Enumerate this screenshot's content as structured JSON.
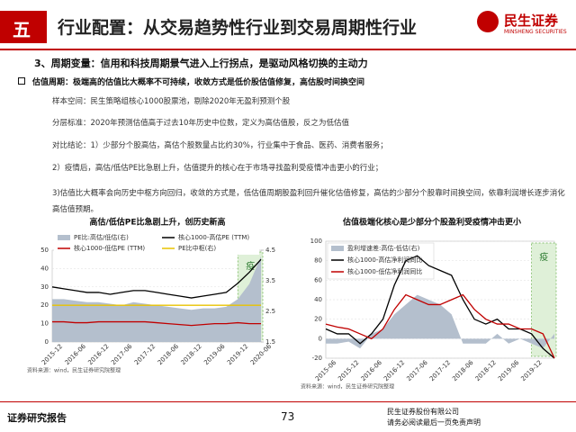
{
  "header": {
    "number": "五",
    "title": "行业配置：从交易趋势性行业到交易周期性行业",
    "logo_cn": "民生证券",
    "logo_en": "MINSHENG SECURITIES"
  },
  "subheading": "3、周期变量：信用和科技周期景气进入上行拐点，是驱动风格切换的主动力",
  "bullet": "估值周期：极端高的估值比大概率不可持续，收敛方式是低价股估值修复，高估股时间换空间",
  "paragraphs": [
    "样本空间：民生策略组核心1000股票池，剔除2020年无盈利预测个股",
    "分层标准：2020年预测估值高于过去10年历史中位数，定义为高估值股，反之为低估值",
    "对比结论：1）少部分个股高估，高估个股数量占比约30%，行业集中于食品、医药、消费者服务；",
    "2）疫情后，高估/低估PE比急剧上升，估值提升的核心在于市场寻找盈利受疫情冲击更小的行业；",
    "3)估值比大概率会向历史中枢方向回归，收敛的方式是，低估值周期股盈利回升催化估值修复，高估的少部分个股靠时间换空间，依靠利润增长逐步消化高估值预期。"
  ],
  "footer": {
    "left": "证券研究报告",
    "page": "73",
    "company": "民生证券股份有限公司",
    "disclaimer": "请务必阅读最后一页免责声明"
  },
  "chart_data": [
    {
      "type": "line",
      "title": "高估/低估PE比急剧上升，创历史新高",
      "source": "资料来源：wind，民生证券研究院整理",
      "annotation": "疫",
      "categories": [
        "2015-12",
        null,
        "2016-06",
        null,
        "2016-12",
        null,
        "2017-06",
        null,
        "2017-12",
        null,
        "2018-06",
        null,
        "2018-12",
        null,
        "2019-06",
        null,
        "2019-12",
        null,
        "2020-06"
      ],
      "ylim": [
        0,
        50
      ],
      "yticks": [
        0,
        10,
        20,
        30,
        40,
        50
      ],
      "y2lim": [
        1.5,
        4.5
      ],
      "y2ticks": [
        1.5,
        2.5,
        3.5,
        4.5
      ],
      "series": [
        {
          "name": "PE比:高估/低估(右)",
          "color": "#b4bfcd",
          "axis": "y2",
          "style": "area",
          "values": [
            2.9,
            2.9,
            2.85,
            2.8,
            2.8,
            2.75,
            2.7,
            2.8,
            2.75,
            2.7,
            2.65,
            2.6,
            2.55,
            2.6,
            2.6,
            2.65,
            2.9,
            3.4,
            4.3
          ]
        },
        {
          "name": "核心1000-高估PE (TTM)",
          "color": "#000000",
          "values": [
            30,
            29,
            28,
            27,
            27,
            26,
            27,
            28,
            28,
            27,
            26,
            25,
            24,
            25,
            26,
            27,
            32,
            38,
            45
          ]
        },
        {
          "name": "核心1000-低估PE (TTM)",
          "color": "#c00000",
          "values": [
            11,
            11,
            10.5,
            10.5,
            11,
            11,
            11,
            11,
            11,
            10.5,
            10,
            9.5,
            9,
            9.5,
            10,
            10,
            10.5,
            10,
            10
          ]
        },
        {
          "name": "PE比中枢(右)",
          "color": "#e8c200",
          "axis": "y2",
          "values": [
            2.7,
            2.7,
            2.7,
            2.7,
            2.7,
            2.7,
            2.7,
            2.7,
            2.7,
            2.7,
            2.7,
            2.7,
            2.7,
            2.7,
            2.7,
            2.7,
            2.7,
            2.7,
            2.7
          ]
        }
      ]
    },
    {
      "type": "line",
      "title": "估值极端化核心是少部分个股盈利受疫情冲击更小",
      "source": "资料来源：wind，民生证券研究院整理",
      "annotation": "疫",
      "categories": [
        "2015-06",
        null,
        "2015-12",
        null,
        "2016-06",
        null,
        "2016-12",
        null,
        "2017-06",
        null,
        "2017-12",
        null,
        "2018-06",
        null,
        "2018-12",
        null,
        "2019-06",
        null,
        "2019-12",
        null,
        null
      ],
      "ylim": [
        -20,
        100
      ],
      "yticks": [
        -20,
        0,
        20,
        40,
        60,
        80,
        100
      ],
      "series": [
        {
          "name": "盈利增速差:高估-低估(右)",
          "color": "#b4bfcd",
          "style": "area",
          "values": [
            -5,
            -5,
            -3,
            -10,
            5,
            10,
            25,
            35,
            45,
            40,
            35,
            25,
            -5,
            -5,
            -5,
            5,
            -5,
            0,
            -5,
            -10,
            5
          ]
        },
        {
          "name": "核心1000-高估净利润同比",
          "color": "#000000",
          "values": [
            10,
            5,
            5,
            -5,
            5,
            20,
            55,
            80,
            85,
            75,
            70,
            65,
            40,
            20,
            15,
            20,
            10,
            10,
            5,
            -10,
            -20
          ]
        },
        {
          "name": "核心1000-低估净利润同比",
          "color": "#c00000",
          "values": [
            15,
            12,
            10,
            5,
            0,
            10,
            30,
            45,
            40,
            35,
            35,
            40,
            45,
            30,
            20,
            15,
            15,
            10,
            10,
            5,
            -20
          ]
        }
      ]
    }
  ]
}
